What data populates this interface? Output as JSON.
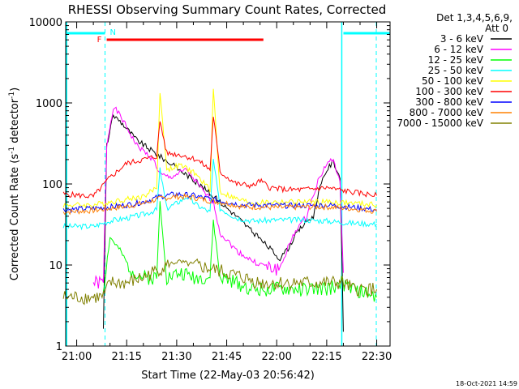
{
  "chart_data": {
    "type": "line",
    "title": "RHESSI Observing Summary Count Rates, Corrected",
    "xlabel": "Start Time (22-May-03 20:56:42)",
    "ylabel_parts": [
      "Corrected Count Rate (s",
      "-1",
      " detector",
      "-1",
      ")"
    ],
    "yscale": "log",
    "ylim": [
      1,
      10000
    ],
    "xlim_minutes_utc": [
      "20:56:42",
      "22:34:00"
    ],
    "x_ticks": [
      "21:00",
      "21:15",
      "21:30",
      "21:45",
      "22:00",
      "22:15",
      "22:30"
    ],
    "y_ticks": [
      "1",
      "10",
      "100",
      "1000",
      "10000"
    ],
    "legend_header": [
      "Det 1,3,4,5,6,9,",
      "Att 0"
    ],
    "legend_placement": "right",
    "timestamp": "18-Oct-2021 14:59",
    "flags": [
      {
        "label": "N",
        "color": "#00ffff",
        "note": "night intervals (top bars, dashed vertical lines)"
      },
      {
        "label": "F",
        "color": "#ff0000",
        "note": "flare flag bar"
      }
    ],
    "series": [
      {
        "name": "3 - 6 keV",
        "color": "#000000",
        "points": [
          [
            "21:08",
            1.5
          ],
          [
            "21:09",
            300
          ],
          [
            "21:11",
            700
          ],
          [
            "21:13",
            600
          ],
          [
            "21:18",
            350
          ],
          [
            "21:23",
            250
          ],
          [
            "21:28",
            180
          ],
          [
            "21:33",
            130
          ],
          [
            "21:38",
            90
          ],
          [
            "21:43",
            60
          ],
          [
            "21:48",
            40
          ],
          [
            "21:53",
            25
          ],
          [
            "21:58",
            16
          ],
          [
            "22:01",
            12
          ],
          [
            "22:03",
            15
          ],
          [
            "22:06",
            25
          ],
          [
            "22:09",
            35
          ],
          [
            "22:11",
            40
          ],
          [
            "22:13",
            90
          ],
          [
            "22:15",
            150
          ],
          [
            "22:17",
            190
          ],
          [
            "22:19",
            120
          ],
          [
            "22:20",
            1.5
          ]
        ]
      },
      {
        "name": "6 - 12 keV",
        "color": "#ff00ff",
        "points": [
          [
            "21:05",
            6
          ],
          [
            "21:08",
            6
          ],
          [
            "21:09",
            300
          ],
          [
            "21:11",
            900
          ],
          [
            "21:13",
            700
          ],
          [
            "21:18",
            300
          ],
          [
            "21:23",
            200
          ],
          [
            "21:25",
            130
          ],
          [
            "21:28",
            120
          ],
          [
            "21:33",
            150
          ],
          [
            "21:38",
            80
          ],
          [
            "21:41",
            60
          ],
          [
            "21:43",
            25
          ],
          [
            "21:48",
            15
          ],
          [
            "21:53",
            11
          ],
          [
            "21:58",
            9
          ],
          [
            "22:01",
            9
          ],
          [
            "22:03",
            15
          ],
          [
            "22:06",
            28
          ],
          [
            "22:09",
            40
          ],
          [
            "22:12",
            100
          ],
          [
            "22:15",
            180
          ],
          [
            "22:17",
            200
          ],
          [
            "22:19",
            100
          ],
          [
            "22:20",
            8
          ]
        ]
      },
      {
        "name": "12 - 25 keV",
        "color": "#00ff00",
        "points": [
          [
            "21:08",
            5
          ],
          [
            "21:10",
            22
          ],
          [
            "21:13",
            15
          ],
          [
            "21:16",
            9
          ],
          [
            "21:20",
            7
          ],
          [
            "21:24",
            7
          ],
          [
            "21:25",
            60
          ],
          [
            "21:27",
            7
          ],
          [
            "21:31",
            8
          ],
          [
            "21:36",
            7
          ],
          [
            "21:40",
            7
          ],
          [
            "21:41",
            35
          ],
          [
            "21:43",
            7
          ],
          [
            "21:48",
            6
          ],
          [
            "21:53",
            5
          ],
          [
            "22:00",
            5
          ],
          [
            "22:08",
            5
          ],
          [
            "22:15",
            5
          ],
          [
            "22:19",
            6
          ],
          [
            "22:23",
            5
          ],
          [
            "22:30",
            4
          ]
        ]
      },
      {
        "name": "25 - 50 keV",
        "color": "#00ffff",
        "points": [
          [
            "20:56",
            30
          ],
          [
            "21:05",
            30
          ],
          [
            "21:10",
            35
          ],
          [
            "21:15",
            38
          ],
          [
            "21:20",
            42
          ],
          [
            "21:24",
            48
          ],
          [
            "21:25",
            150
          ],
          [
            "21:27",
            50
          ],
          [
            "21:30",
            58
          ],
          [
            "21:33",
            70
          ],
          [
            "21:36",
            55
          ],
          [
            "21:40",
            45
          ],
          [
            "21:41",
            200
          ],
          [
            "21:43",
            50
          ],
          [
            "21:48",
            38
          ],
          [
            "21:53",
            35
          ],
          [
            "22:00",
            36
          ],
          [
            "22:08",
            36
          ],
          [
            "22:15",
            35
          ],
          [
            "22:22",
            33
          ],
          [
            "22:30",
            32
          ]
        ]
      },
      {
        "name": "50 - 100 keV",
        "color": "#ffff00",
        "points": [
          [
            "20:56",
            55
          ],
          [
            "21:05",
            55
          ],
          [
            "21:10",
            60
          ],
          [
            "21:15",
            65
          ],
          [
            "21:20",
            70
          ],
          [
            "21:24",
            90
          ],
          [
            "21:25",
            1400
          ],
          [
            "21:27",
            150
          ],
          [
            "21:31",
            170
          ],
          [
            "21:35",
            140
          ],
          [
            "21:40",
            85
          ],
          [
            "21:41",
            1500
          ],
          [
            "21:43",
            80
          ],
          [
            "21:48",
            65
          ],
          [
            "21:53",
            58
          ],
          [
            "22:00",
            60
          ],
          [
            "22:08",
            60
          ],
          [
            "22:15",
            60
          ],
          [
            "22:22",
            58
          ],
          [
            "22:30",
            55
          ]
        ]
      },
      {
        "name": "100 - 300 keV",
        "color": "#ff0000",
        "points": [
          [
            "20:56",
            75
          ],
          [
            "21:05",
            70
          ],
          [
            "21:10",
            120
          ],
          [
            "21:15",
            180
          ],
          [
            "21:20",
            200
          ],
          [
            "21:24",
            220
          ],
          [
            "21:25",
            600
          ],
          [
            "21:27",
            240
          ],
          [
            "21:31",
            230
          ],
          [
            "21:36",
            200
          ],
          [
            "21:40",
            150
          ],
          [
            "21:41",
            700
          ],
          [
            "21:43",
            140
          ],
          [
            "21:48",
            100
          ],
          [
            "21:53",
            95
          ],
          [
            "21:55",
            110
          ],
          [
            "21:58",
            90
          ],
          [
            "22:03",
            85
          ],
          [
            "22:08",
            85
          ],
          [
            "22:15",
            90
          ],
          [
            "22:22",
            80
          ],
          [
            "22:30",
            72
          ]
        ]
      },
      {
        "name": "300 - 800 keV",
        "color": "#0000ff",
        "points": [
          [
            "20:56",
            48
          ],
          [
            "21:05",
            50
          ],
          [
            "21:10",
            52
          ],
          [
            "21:15",
            55
          ],
          [
            "21:20",
            60
          ],
          [
            "21:25",
            70
          ],
          [
            "21:30",
            75
          ],
          [
            "21:35",
            72
          ],
          [
            "21:40",
            65
          ],
          [
            "21:45",
            60
          ],
          [
            "21:50",
            55
          ],
          [
            "21:55",
            55
          ],
          [
            "22:00",
            54
          ],
          [
            "22:08",
            54
          ],
          [
            "22:15",
            55
          ],
          [
            "22:22",
            52
          ],
          [
            "22:30",
            48
          ]
        ]
      },
      {
        "name": "800 - 7000 keV",
        "color": "#ff8000",
        "points": [
          [
            "20:56",
            45
          ],
          [
            "21:05",
            47
          ],
          [
            "21:10",
            50
          ],
          [
            "21:15",
            53
          ],
          [
            "21:20",
            58
          ],
          [
            "21:25",
            66
          ],
          [
            "21:30",
            70
          ],
          [
            "21:35",
            68
          ],
          [
            "21:40",
            62
          ],
          [
            "21:45",
            58
          ],
          [
            "21:50",
            52
          ],
          [
            "21:55",
            52
          ],
          [
            "22:00",
            51
          ],
          [
            "22:08",
            52
          ],
          [
            "22:15",
            52
          ],
          [
            "22:22",
            50
          ],
          [
            "22:30",
            46
          ]
        ]
      },
      {
        "name": "7000 - 15000 keV",
        "color": "#808000",
        "points": [
          [
            "20:56",
            4
          ],
          [
            "21:05",
            4
          ],
          [
            "21:08",
            4
          ],
          [
            "21:10",
            6
          ],
          [
            "21:15",
            6
          ],
          [
            "21:20",
            7
          ],
          [
            "21:25",
            9
          ],
          [
            "21:30",
            11
          ],
          [
            "21:35",
            10
          ],
          [
            "21:40",
            9
          ],
          [
            "21:45",
            8
          ],
          [
            "21:50",
            7
          ],
          [
            "21:55",
            6
          ],
          [
            "22:00",
            6
          ],
          [
            "22:08",
            6
          ],
          [
            "22:15",
            6
          ],
          [
            "22:20",
            6
          ],
          [
            "22:23",
            5
          ],
          [
            "22:30",
            5
          ]
        ]
      }
    ],
    "night_intervals": [
      [
        "20:56:42",
        "21:08:30"
      ],
      [
        "22:20:00",
        "22:34:00"
      ]
    ],
    "flare_interval": [
      "21:09:00",
      "21:56:00"
    ]
  }
}
